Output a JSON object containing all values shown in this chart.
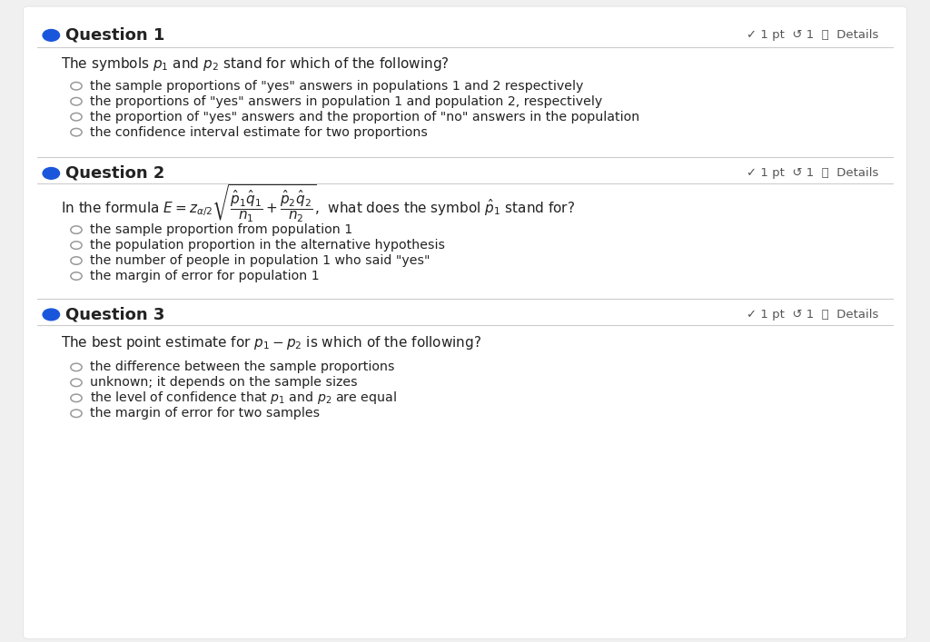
{
  "bg_color": "#f0f0f0",
  "card_bg": "#ffffff",
  "text_color": "#222222",
  "gray_color": "#555555",
  "blue_dot_color": "#1a56db",
  "line_color": "#cccccc",
  "q1": {
    "label": "Question 1",
    "meta": "✓ 1 pt  ↺ 1  ⓘ  Details",
    "question": "The symbols $p_1$ and $p_2$ stand for which of the following?",
    "options": [
      "the sample proportions of \"yes\" answers in populations 1 and 2 respectively",
      "the proportions of \"yes\" answers in population 1 and population 2, respectively",
      "the proportion of \"yes\" answers and the proportion of \"no\" answers in the population",
      "the confidence interval estimate for two proportions"
    ]
  },
  "q2": {
    "label": "Question 2",
    "meta": "✓ 1 pt  ↺ 1  ⓘ  Details",
    "question_prefix": "In the formula $E = z_{\\alpha/2}\\sqrt{\\dfrac{\\hat{p}_1\\hat{q}_1}{n_1} + \\dfrac{\\hat{p}_2\\hat{q}_2}{n_2}}$,  what does the symbol $\\hat{p}_1$ stand for?",
    "options": [
      "the sample proportion from population 1",
      "the population proportion in the alternative hypothesis",
      "the number of people in population 1 who said \"yes\"",
      "the margin of error for population 1"
    ]
  },
  "q3": {
    "label": "Question 3",
    "meta": "✓ 1 pt  ↺ 1  ⓘ  Details",
    "question": "The best point estimate for $p_1 - p_2$ is which of the following?",
    "options": [
      "the difference between the sample proportions",
      "unknown; it depends on the sample sizes",
      "the level of confidence that $p_1$ and $p_2$ are equal",
      "the margin of error for two samples"
    ]
  }
}
